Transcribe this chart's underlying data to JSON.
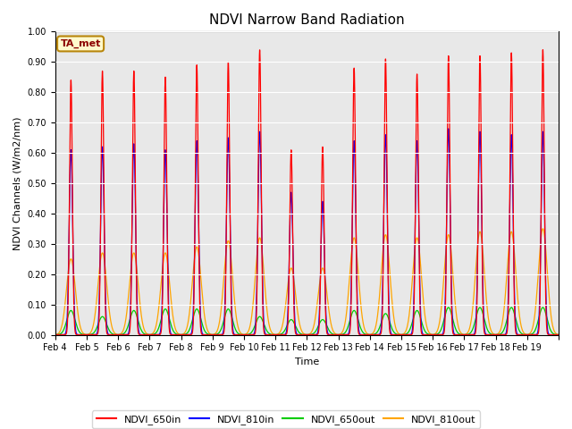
{
  "title": "NDVI Narrow Band Radiation",
  "ylabel": "NDVI Channels (W/m2/nm)",
  "xlabel": "Time",
  "annotation": "TA_met",
  "ylim": [
    0.0,
    1.0
  ],
  "yticks": [
    0.0,
    0.1,
    0.2,
    0.3,
    0.4,
    0.5,
    0.6,
    0.7,
    0.8,
    0.9,
    1.0
  ],
  "xtick_labels": [
    "Feb 4",
    "Feb 5",
    "Feb 6",
    "Feb 7",
    "Feb 8",
    "Feb 9",
    "Feb 10",
    "Feb 11",
    "Feb 12",
    "Feb 13",
    "Feb 14",
    "Feb 15",
    "Feb 16",
    "Feb 17",
    "Feb 18",
    "Feb 19"
  ],
  "colors": {
    "NDVI_650in": "#FF0000",
    "NDVI_810in": "#0000FF",
    "NDVI_650out": "#00CC00",
    "NDVI_810out": "#FFA500"
  },
  "legend_labels": [
    "NDVI_650in",
    "NDVI_810in",
    "NDVI_650out",
    "NDVI_810out"
  ],
  "background_color": "#E8E8E8",
  "grid_color": "#FFFFFF",
  "peaks_650in": [
    0.84,
    0.87,
    0.87,
    0.85,
    0.89,
    0.9,
    0.94,
    0.61,
    0.62,
    0.88,
    0.91,
    0.86,
    0.92,
    0.92,
    0.93,
    0.94
  ],
  "peaks_810in": [
    0.61,
    0.62,
    0.63,
    0.61,
    0.64,
    0.65,
    0.67,
    0.47,
    0.44,
    0.64,
    0.66,
    0.64,
    0.68,
    0.67,
    0.66,
    0.67
  ],
  "peaks_650out": [
    0.08,
    0.06,
    0.08,
    0.085,
    0.085,
    0.085,
    0.06,
    0.05,
    0.05,
    0.08,
    0.07,
    0.08,
    0.09,
    0.09,
    0.09,
    0.09
  ],
  "peaks_810out": [
    0.25,
    0.27,
    0.27,
    0.27,
    0.29,
    0.31,
    0.32,
    0.22,
    0.22,
    0.32,
    0.33,
    0.32,
    0.33,
    0.34,
    0.34,
    0.35
  ],
  "title_fontsize": 11,
  "label_fontsize": 8,
  "tick_fontsize": 7,
  "figsize": [
    6.4,
    4.8
  ],
  "dpi": 100
}
